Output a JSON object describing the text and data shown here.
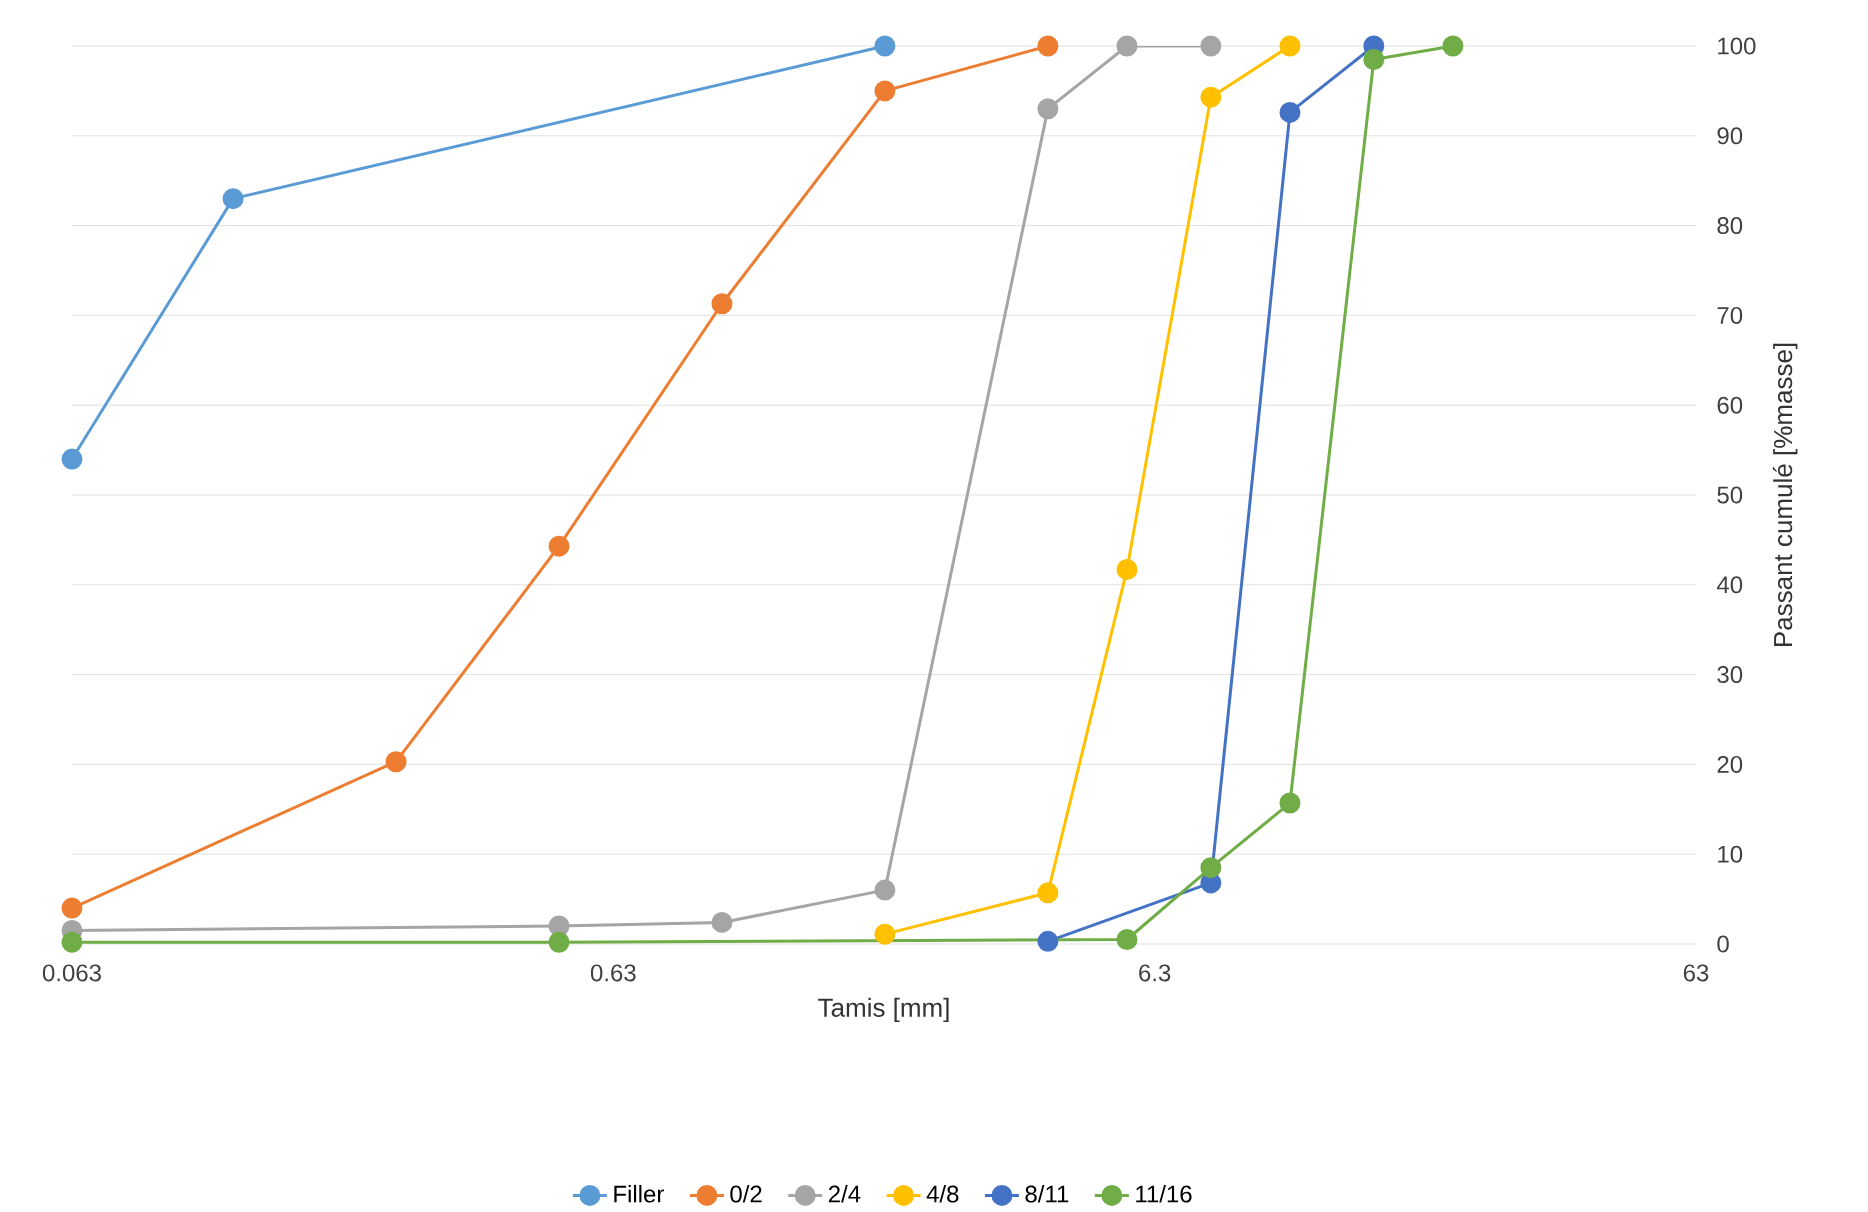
{
  "chart_data": {
    "type": "line",
    "xlabel": "Tamis [mm]",
    "ylabel": "Passant cumulé [%masse]",
    "log": "x",
    "xlim": [
      0.063,
      63
    ],
    "xticks": [
      0.063,
      0.63,
      6.3,
      63
    ],
    "ylim": [
      0,
      100
    ],
    "yticks": [
      0,
      10,
      20,
      30,
      40,
      50,
      60,
      70,
      80,
      90,
      100
    ],
    "grid": "y",
    "legend": "bottom",
    "marker": "circle",
    "line_style": "solid",
    "series": [
      {
        "name": "Filler",
        "color": "#5b9bd5",
        "x": [
          0.063,
          0.125,
          2
        ],
        "values": [
          54,
          83,
          100
        ]
      },
      {
        "name": "0/2",
        "color": "#ed7d31",
        "x": [
          0.063,
          0.25,
          0.5,
          1,
          2,
          4
        ],
        "values": [
          4,
          20.3,
          44.3,
          71.3,
          95,
          100
        ]
      },
      {
        "name": "2/4",
        "color": "#a5a5a5",
        "x": [
          0.063,
          0.5,
          1,
          2,
          4,
          5.6,
          8
        ],
        "values": [
          1.5,
          2,
          2.4,
          6,
          93,
          100,
          100
        ]
      },
      {
        "name": "4/8",
        "color": "#ffc000",
        "x": [
          2,
          4,
          5.6,
          8,
          11.2
        ],
        "values": [
          1.1,
          5.7,
          41.7,
          94.3,
          100
        ]
      },
      {
        "name": "8/11",
        "color": "#4472c4",
        "x": [
          4,
          8,
          11.2,
          16
        ],
        "values": [
          0.3,
          6.8,
          92.6,
          100
        ]
      },
      {
        "name": "11/16",
        "color": "#70ad47",
        "x": [
          0.063,
          0.5,
          5.6,
          8,
          11.2,
          16,
          22.4
        ],
        "values": [
          0.2,
          0.2,
          0.5,
          8.5,
          15.7,
          98.5,
          100
        ]
      }
    ]
  }
}
